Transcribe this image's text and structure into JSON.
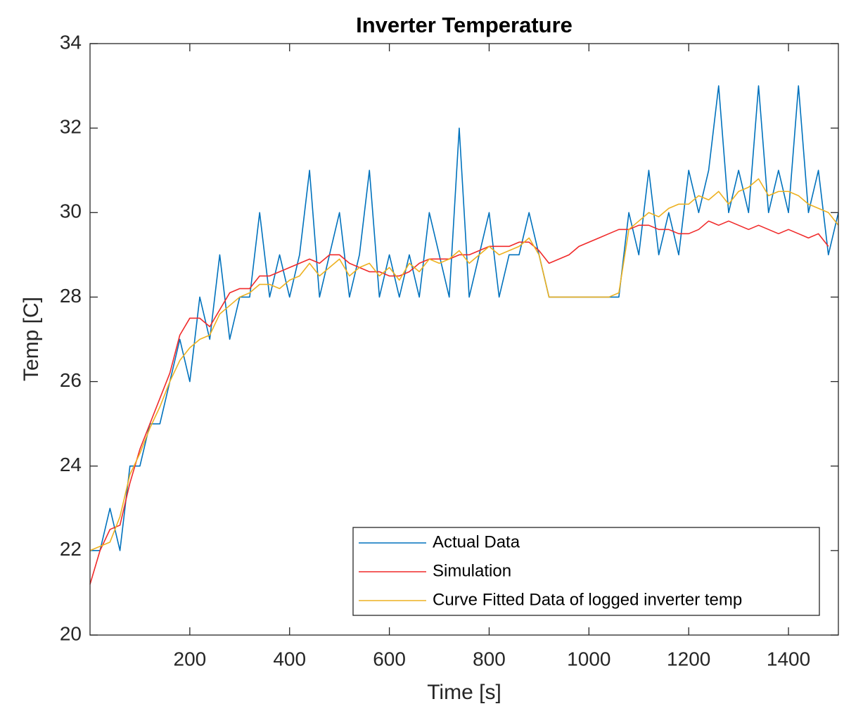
{
  "chart_data": {
    "type": "line",
    "title": "Inverter Temperature",
    "x_label": "Time [s]",
    "y_label": "Temp [C]",
    "xlim": [
      0,
      1500
    ],
    "xticks": [
      200,
      400,
      600,
      800,
      1000,
      1200,
      1400
    ],
    "ylim": [
      20,
      34
    ],
    "yticks": [
      20,
      22,
      24,
      26,
      28,
      30,
      32,
      34
    ],
    "grid": false,
    "legend": "lower right",
    "x": [
      0,
      20,
      40,
      60,
      80,
      100,
      120,
      140,
      160,
      180,
      200,
      220,
      240,
      260,
      280,
      300,
      320,
      340,
      360,
      380,
      400,
      420,
      440,
      460,
      480,
      500,
      520,
      540,
      560,
      580,
      600,
      620,
      640,
      660,
      680,
      700,
      720,
      740,
      760,
      780,
      800,
      820,
      840,
      860,
      880,
      900,
      920,
      940,
      960,
      980,
      1000,
      1020,
      1040,
      1060,
      1080,
      1100,
      1120,
      1140,
      1160,
      1180,
      1200,
      1220,
      1240,
      1260,
      1280,
      1300,
      1320,
      1340,
      1360,
      1380,
      1400,
      1420,
      1440,
      1460,
      1480,
      1500
    ],
    "series": [
      {
        "name": "Actual Data",
        "color": "#0072bd",
        "values": [
          22,
          22,
          23,
          22,
          24,
          24,
          25,
          25,
          26,
          27,
          26,
          28,
          27,
          29,
          27,
          28,
          28,
          30,
          28,
          29,
          28,
          29,
          31,
          28,
          29,
          30,
          28,
          29,
          31,
          28,
          29,
          28,
          29,
          28,
          30,
          29,
          28,
          32,
          28,
          29,
          30,
          28,
          29,
          29,
          30,
          29,
          28,
          28,
          28,
          28,
          28,
          28,
          28,
          28,
          30,
          29,
          31,
          29,
          30,
          29,
          31,
          30,
          31,
          33,
          30,
          31,
          30,
          33,
          30,
          31,
          30,
          33,
          30,
          31,
          29,
          30
        ]
      },
      {
        "name": "Simulation",
        "color": "#f02a2a",
        "values": [
          21.2,
          22.0,
          22.5,
          22.6,
          23.6,
          24.4,
          25.0,
          25.6,
          26.2,
          27.1,
          27.5,
          27.5,
          27.3,
          27.7,
          28.1,
          28.2,
          28.2,
          28.5,
          28.5,
          28.6,
          28.7,
          28.8,
          28.9,
          28.8,
          29.0,
          29.0,
          28.8,
          28.7,
          28.6,
          28.6,
          28.5,
          28.5,
          28.6,
          28.8,
          28.9,
          28.9,
          28.9,
          29.0,
          29.0,
          29.1,
          29.2,
          29.2,
          29.2,
          29.3,
          29.3,
          29.1,
          28.8,
          28.9,
          29.0,
          29.2,
          29.3,
          29.4,
          29.5,
          29.6,
          29.6,
          29.7,
          29.7,
          29.6,
          29.6,
          29.5,
          29.5,
          29.6,
          29.8,
          29.7,
          29.8,
          29.7,
          29.6,
          29.7,
          29.6,
          29.5,
          29.6,
          29.5,
          29.4,
          29.5,
          29.2,
          null
        ]
      },
      {
        "name": "Curve Fitted Data of logged inverter temp",
        "color": "#edb120",
        "values": [
          22.0,
          22.1,
          22.2,
          22.8,
          23.8,
          24.3,
          24.9,
          25.4,
          26.0,
          26.5,
          26.8,
          27.0,
          27.1,
          27.6,
          27.8,
          28.0,
          28.1,
          28.3,
          28.3,
          28.2,
          28.4,
          28.5,
          28.8,
          28.5,
          28.7,
          28.9,
          28.5,
          28.7,
          28.8,
          28.5,
          28.7,
          28.4,
          28.8,
          28.6,
          28.9,
          28.8,
          28.9,
          29.1,
          28.8,
          29.0,
          29.2,
          29.0,
          29.1,
          29.2,
          29.4,
          29.0,
          28.0,
          28.0,
          28.0,
          28.0,
          28.0,
          28.0,
          28.0,
          28.1,
          29.6,
          29.8,
          30.0,
          29.9,
          30.1,
          30.2,
          30.2,
          30.4,
          30.3,
          30.5,
          30.2,
          30.5,
          30.6,
          30.8,
          30.4,
          30.5,
          30.5,
          30.4,
          30.2,
          30.1,
          30.0,
          29.7
        ]
      }
    ]
  }
}
